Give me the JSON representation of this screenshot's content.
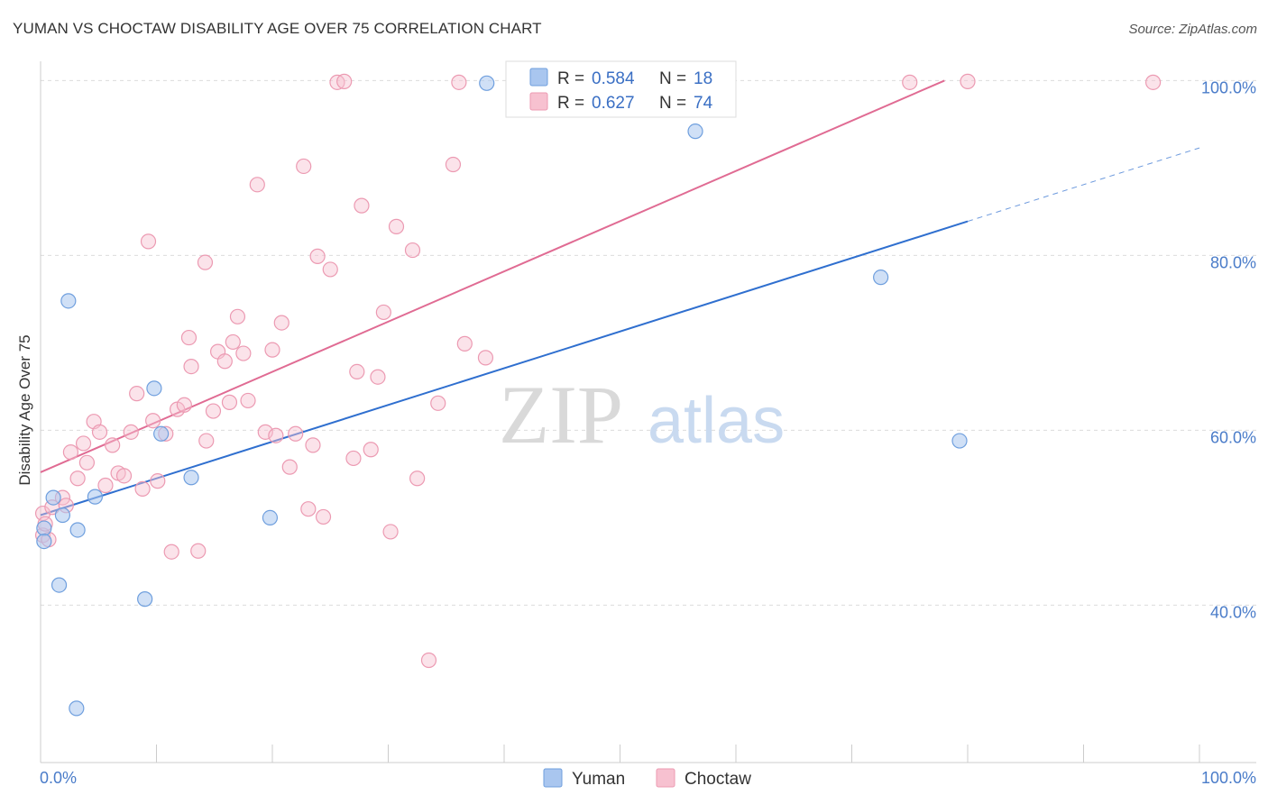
{
  "title": "YUMAN VS CHOCTAW DISABILITY AGE OVER 75 CORRELATION CHART",
  "source": "Source: ZipAtlas.com",
  "watermark": {
    "part1": "ZIP",
    "part2": "atlas"
  },
  "colors": {
    "yuman_fill": "#a9c6ef",
    "yuman_stroke": "#6f9fde",
    "yuman_line": "#2f6fcf",
    "choctaw_fill": "#f7c1d0",
    "choctaw_stroke": "#ec9ab2",
    "choctaw_line": "#e06b93",
    "grid": "#dcdcdc",
    "tick_text": "#4a7cc9"
  },
  "legend_top": {
    "rows": [
      {
        "r_label": "R = ",
        "r_value": "0.584",
        "n_label": "N = ",
        "n_value": "18"
      },
      {
        "r_label": "R = ",
        "r_value": "0.627",
        "n_label": "N = ",
        "n_value": "74"
      }
    ]
  },
  "legend_bottom": [
    "Yuman",
    "Choctaw"
  ],
  "chart_data": {
    "type": "scatter",
    "title": "YUMAN VS CHOCTAW DISABILITY AGE OVER 75 CORRELATION CHART",
    "xlabel": "",
    "ylabel": "Disability Age Over 75",
    "xlim": [
      0,
      100
    ],
    "ylim": [
      22,
      102
    ],
    "x_tick_labels": [
      "0.0%",
      "100.0%"
    ],
    "y_ticks": [
      40,
      60,
      80,
      100
    ],
    "y_tick_labels": [
      "40.0%",
      "60.0%",
      "80.0%",
      "100.0%"
    ],
    "grid": true,
    "series": [
      {
        "name": "Yuman",
        "R": 0.584,
        "N": 18,
        "trend": {
          "x0": 0,
          "y0": 50.3,
          "x1": 100,
          "y1": 92.3,
          "solid_until_x": 80
        },
        "points": [
          [
            0.3,
            48.8
          ],
          [
            0.3,
            47.3
          ],
          [
            1.1,
            52.3
          ],
          [
            1.6,
            42.3
          ],
          [
            1.9,
            50.3
          ],
          [
            2.4,
            74.8
          ],
          [
            3.1,
            28.2
          ],
          [
            3.2,
            48.6
          ],
          [
            4.7,
            52.4
          ],
          [
            9.0,
            40.7
          ],
          [
            9.8,
            64.8
          ],
          [
            10.4,
            59.6
          ],
          [
            13.0,
            54.6
          ],
          [
            19.8,
            50.0
          ],
          [
            38.5,
            99.7
          ],
          [
            56.5,
            94.2
          ],
          [
            72.5,
            77.5
          ],
          [
            79.3,
            58.8
          ]
        ]
      },
      {
        "name": "Choctaw",
        "R": 0.627,
        "N": 74,
        "trend": {
          "x0": 0,
          "y0": 55.2,
          "x1": 78,
          "y1": 100.0
        },
        "points": [
          [
            0.2,
            48.0
          ],
          [
            0.2,
            50.5
          ],
          [
            0.4,
            49.3
          ],
          [
            0.7,
            47.5
          ],
          [
            1.0,
            51.2
          ],
          [
            1.9,
            52.3
          ],
          [
            2.2,
            51.4
          ],
          [
            2.6,
            57.5
          ],
          [
            3.2,
            54.5
          ],
          [
            3.7,
            58.5
          ],
          [
            4.0,
            56.3
          ],
          [
            4.6,
            61.0
          ],
          [
            5.1,
            59.8
          ],
          [
            5.6,
            53.7
          ],
          [
            6.2,
            58.3
          ],
          [
            6.7,
            55.1
          ],
          [
            7.2,
            54.8
          ],
          [
            7.8,
            59.8
          ],
          [
            8.3,
            64.2
          ],
          [
            8.8,
            53.3
          ],
          [
            9.3,
            81.6
          ],
          [
            9.7,
            61.1
          ],
          [
            10.1,
            54.2
          ],
          [
            10.8,
            59.6
          ],
          [
            11.3,
            46.1
          ],
          [
            11.8,
            62.4
          ],
          [
            12.4,
            62.9
          ],
          [
            12.8,
            70.6
          ],
          [
            13.0,
            67.3
          ],
          [
            13.6,
            46.2
          ],
          [
            14.2,
            79.2
          ],
          [
            14.3,
            58.8
          ],
          [
            14.9,
            62.2
          ],
          [
            15.3,
            69.0
          ],
          [
            15.9,
            67.9
          ],
          [
            16.3,
            63.2
          ],
          [
            16.6,
            70.1
          ],
          [
            17.0,
            73.0
          ],
          [
            17.5,
            68.8
          ],
          [
            17.9,
            63.4
          ],
          [
            18.7,
            88.1
          ],
          [
            19.4,
            59.8
          ],
          [
            20.0,
            69.2
          ],
          [
            20.3,
            59.4
          ],
          [
            20.8,
            72.3
          ],
          [
            21.5,
            55.8
          ],
          [
            22.0,
            59.6
          ],
          [
            22.7,
            90.2
          ],
          [
            23.1,
            51.0
          ],
          [
            23.5,
            58.3
          ],
          [
            23.9,
            79.9
          ],
          [
            24.4,
            50.1
          ],
          [
            25.0,
            78.4
          ],
          [
            25.6,
            99.8
          ],
          [
            26.2,
            99.9
          ],
          [
            27.0,
            56.8
          ],
          [
            27.3,
            66.7
          ],
          [
            27.7,
            85.7
          ],
          [
            28.5,
            57.8
          ],
          [
            29.1,
            66.1
          ],
          [
            29.6,
            73.5
          ],
          [
            30.2,
            48.4
          ],
          [
            30.7,
            83.3
          ],
          [
            32.1,
            80.6
          ],
          [
            32.5,
            54.5
          ],
          [
            33.5,
            33.7
          ],
          [
            34.3,
            63.1
          ],
          [
            35.6,
            90.4
          ],
          [
            36.1,
            99.8
          ],
          [
            36.6,
            69.9
          ],
          [
            38.4,
            68.3
          ],
          [
            75.0,
            99.8
          ],
          [
            80.0,
            99.9
          ],
          [
            96.0,
            99.8
          ]
        ]
      }
    ]
  }
}
